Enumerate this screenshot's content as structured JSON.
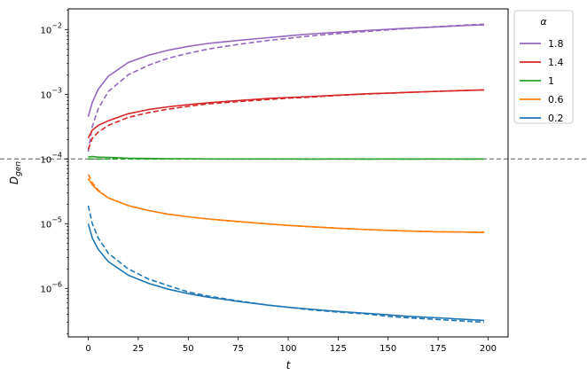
{
  "chart_data": {
    "type": "line",
    "xlabel": "t",
    "ylabel_base": "D",
    "ylabel_sub": "gen",
    "xlim": [
      -10,
      210
    ],
    "ylim_log10": [
      -6.75,
      -1.68
    ],
    "y_scale": "log",
    "x_ticks": [
      0,
      25,
      50,
      75,
      100,
      125,
      150,
      175,
      200
    ],
    "y_ticks": [
      {
        "exp": -6,
        "base": "10",
        "sup": "−6"
      },
      {
        "exp": -5,
        "base": "10",
        "sup": "−5"
      },
      {
        "exp": -4,
        "base": "10",
        "sup": "−4"
      },
      {
        "exp": -3,
        "base": "10",
        "sup": "−3"
      },
      {
        "exp": -2,
        "base": "10",
        "sup": "−2"
      }
    ],
    "reference_line": {
      "y": 0.0001,
      "style": "dashed",
      "color": "#555555"
    },
    "legend": {
      "title": "α",
      "placement": "outside-top-right"
    },
    "x": [
      0,
      2,
      5,
      10,
      20,
      30,
      40,
      50,
      60,
      75,
      90,
      100,
      110,
      125,
      140,
      150,
      160,
      175,
      190,
      198
    ],
    "series": [
      {
        "name": "1.8",
        "color": "#9467bd",
        "solid": [
          0.00045,
          0.00075,
          0.0012,
          0.0019,
          0.0031,
          0.004,
          0.0048,
          0.0055,
          0.0061,
          0.0068,
          0.0075,
          0.008,
          0.0085,
          0.0091,
          0.0097,
          0.0101,
          0.0105,
          0.011,
          0.0116,
          0.0118
        ],
        "dashed": [
          0.00013,
          0.00032,
          0.0006,
          0.0011,
          0.002,
          0.0028,
          0.0036,
          0.0043,
          0.005,
          0.0059,
          0.0068,
          0.0073,
          0.0079,
          0.0087,
          0.0094,
          0.0099,
          0.0104,
          0.0111,
          0.0118,
          0.0121
        ]
      },
      {
        "name": "1.4",
        "color": "#d62728",
        "solid": [
          0.00021,
          0.00028,
          0.00033,
          0.00039,
          0.0005,
          0.00058,
          0.00064,
          0.00069,
          0.00074,
          0.0008,
          0.00086,
          0.00089,
          0.00092,
          0.00097,
          0.00102,
          0.00104,
          0.00107,
          0.00111,
          0.00115,
          0.00117
        ],
        "dashed": [
          0.00014,
          0.00021,
          0.00026,
          0.00033,
          0.00044,
          0.00052,
          0.00059,
          0.00065,
          0.00071,
          0.00077,
          0.00083,
          0.00087,
          0.0009,
          0.00096,
          0.00101,
          0.00104,
          0.00107,
          0.00111,
          0.00115,
          0.00117
        ]
      },
      {
        "name": "1",
        "color": "#2ca02c",
        "solid": [
          0.000108,
          0.000109,
          0.000107,
          0.000106,
          0.000103,
          0.000102,
          0.000101,
          0.000101,
          0.0001,
          0.0001,
          0.0001,
          0.0001,
          9.95e-05,
          0.0001,
          9.95e-05,
          0.0001,
          9.95e-05,
          0.0001,
          9.95e-05,
          0.0001
        ],
        "dashed": [
          0.0001,
          0.0001,
          0.0001,
          0.0001,
          0.0001,
          0.0001,
          0.0001,
          0.0001,
          0.0001,
          0.0001,
          0.0001,
          0.0001,
          0.0001,
          0.0001,
          0.0001,
          0.0001,
          0.0001,
          0.0001,
          0.0001,
          0.0001
        ]
      },
      {
        "name": "0.6",
        "color": "#ff7f0e",
        "solid": [
          5e-05,
          4e-05,
          3.2e-05,
          2.5e-05,
          1.9e-05,
          1.6e-05,
          1.4e-05,
          1.28e-05,
          1.18e-05,
          1.08e-05,
          9.9e-06,
          9.4e-06,
          9e-06,
          8.5e-06,
          8.1e-06,
          7.9e-06,
          7.7e-06,
          7.5e-06,
          7.4e-06,
          7.3e-06
        ],
        "dashed": [
          5.8e-05,
          4.3e-05,
          3.3e-05,
          2.5e-05,
          1.9e-05,
          1.6e-05,
          1.4e-05,
          1.28e-05,
          1.18e-05,
          1.07e-05,
          9.9e-06,
          9.4e-06,
          9e-06,
          8.5e-06,
          8.1e-06,
          7.9e-06,
          7.7e-06,
          7.5e-06,
          7.4e-06,
          7.4e-06
        ]
      },
      {
        "name": "0.2",
        "color": "#1f77b4",
        "solid": [
          1e-05,
          6e-06,
          4e-06,
          2.6e-06,
          1.6e-06,
          1.2e-06,
          9.7e-07,
          8.3e-07,
          7.3e-07,
          6.3e-07,
          5.5e-07,
          5.1e-07,
          4.8e-07,
          4.4e-07,
          4.1e-07,
          3.9e-07,
          3.7e-07,
          3.5e-07,
          3.3e-07,
          3.2e-07
        ],
        "dashed": [
          1.9e-05,
          1e-05,
          6e-06,
          3.5e-06,
          2e-06,
          1.4e-06,
          1.1e-06,
          8.8e-07,
          7.6e-07,
          6.4e-07,
          5.5e-07,
          5.1e-07,
          4.7e-07,
          4.3e-07,
          4e-07,
          3.7e-07,
          3.5e-07,
          3.3e-07,
          3.1e-07,
          3e-07
        ]
      }
    ]
  }
}
